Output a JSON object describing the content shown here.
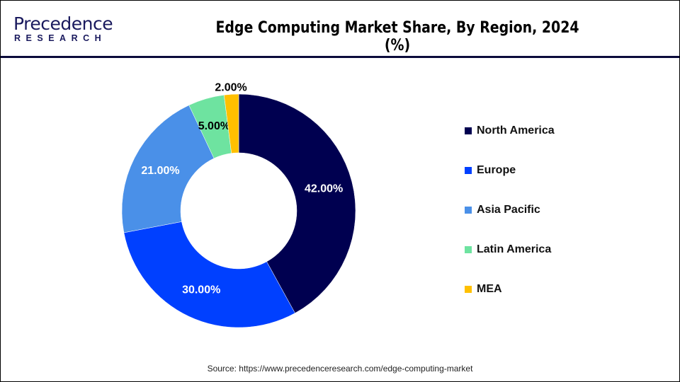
{
  "header": {
    "logo": {
      "line1": "Precedence",
      "line2": "RESEARCH"
    },
    "title": "Edge Computing Market Share, By Region, 2024 (%)"
  },
  "chart_data": {
    "type": "pie",
    "donut": true,
    "title": "Edge Computing Market Share, By Region, 2024 (%)",
    "categories": [
      "North America",
      "Europe",
      "Asia Pacific",
      "Latin America",
      "MEA"
    ],
    "values": [
      42,
      30,
      21,
      5,
      2
    ],
    "labels": [
      "42.00%",
      "30.00%",
      "21.00%",
      "5.00%",
      "2.00%"
    ],
    "colors": [
      "#000050",
      "#0040ff",
      "#4a90e8",
      "#6ee3a0",
      "#ffc000"
    ],
    "label_colors": [
      "#ffffff",
      "#ffffff",
      "#ffffff",
      "#000000",
      "#000000"
    ],
    "start": "top",
    "direction": "clockwise",
    "legend_position": "right"
  },
  "footer": {
    "source": "Source: https://www.precedenceresearch.com/edge-computing-market"
  }
}
